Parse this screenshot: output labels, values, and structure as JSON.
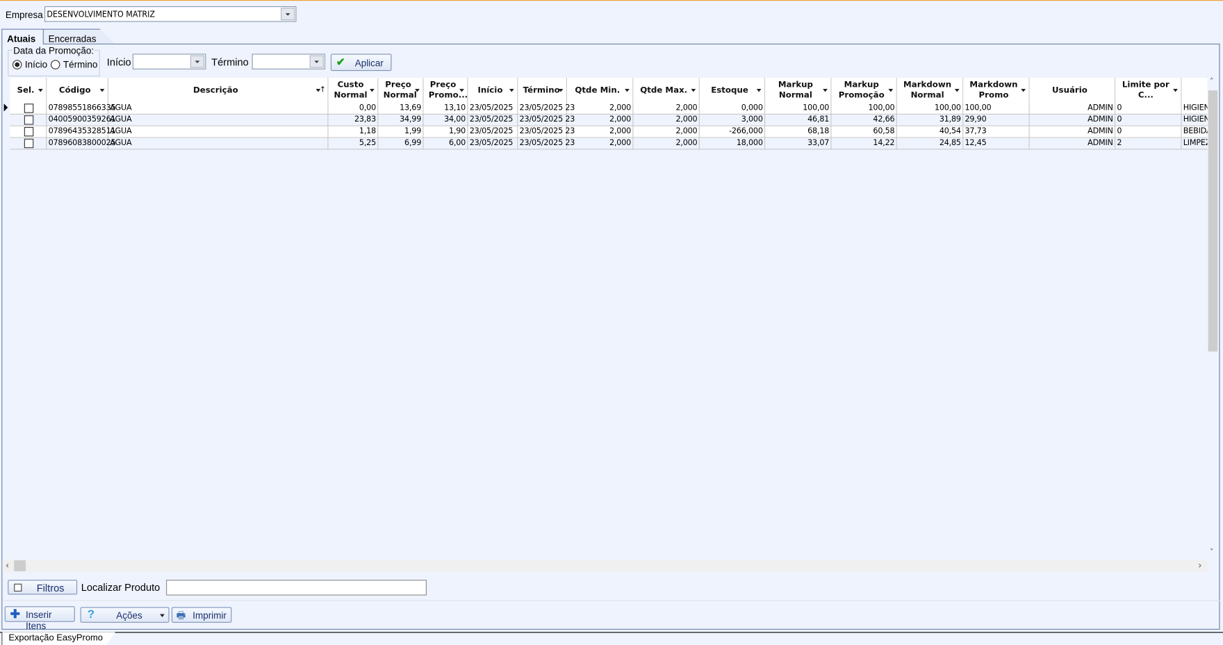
{
  "empresa": {
    "label": "Empresa",
    "value": "DESENVOLVIMENTO MATRIZ"
  },
  "tabs": [
    {
      "label": "Atuais",
      "active": true
    },
    {
      "label": "Encerradas",
      "active": false
    }
  ],
  "filter": {
    "group_label": "Data da Promoção:",
    "radio_inicio": "Início",
    "radio_termino": "Término",
    "selected": "Início",
    "inicio_label": "Início",
    "inicio_value": "",
    "termino_label": "Término",
    "termino_value": "",
    "apply_label": "Aplicar"
  },
  "grid": {
    "columns": [
      "Sel.",
      "Código",
      "Descrição",
      "Custo Normal",
      "Preço Normal",
      "Preço Promo...",
      "Início",
      "Término",
      "Qtde Min.",
      "Qtde Max.",
      "Estoque",
      "Markup Normal",
      "Markup Promoção",
      "Markdown Normal",
      "Markdown Promo",
      "Usuário",
      "Limite por C...",
      ""
    ],
    "rows": [
      {
        "sel": false,
        "cells": [
          "07898551866335",
          "AGUA",
          "0,00",
          "13,69",
          "13,10",
          "23/05/2025",
          "23/05/2025 23",
          "2,000",
          "2,000",
          "0,000",
          "100,00",
          "100,00",
          "100,00",
          "100,00",
          "ADMIN",
          "0",
          "HIGIEN"
        ]
      },
      {
        "sel": false,
        "cells": [
          "04005900359261",
          "AGUA",
          "23,83",
          "34,99",
          "34,00",
          "23/05/2025",
          "23/05/2025 23",
          "2,000",
          "2,000",
          "3,000",
          "46,81",
          "42,66",
          "31,89",
          "29,90",
          "ADMIN",
          "0",
          "HIGIEN"
        ]
      },
      {
        "sel": false,
        "cells": [
          "07896435328511",
          "AGUA",
          "1,18",
          "1,99",
          "1,90",
          "23/05/2025",
          "23/05/2025 23",
          "2,000",
          "2,000",
          "-266,000",
          "68,18",
          "60,58",
          "40,54",
          "37,73",
          "ADMIN",
          "0",
          "BEBIDA"
        ]
      },
      {
        "sel": false,
        "cells": [
          "07896083800025",
          "AGUA",
          "5,25",
          "6,99",
          "6,00",
          "23/05/2025",
          "23/05/2025 23",
          "2,000",
          "2,000",
          "18,000",
          "33,07",
          "14,22",
          "24,85",
          "12,45",
          "ADMIN",
          "2",
          "LIMPEZ"
        ]
      }
    ]
  },
  "bottom": {
    "filtros_label": "Filtros",
    "localizar_label": "Localizar Produto",
    "localizar_value": "",
    "inserir_label": "Inserir Itens",
    "acoes_label": "Ações",
    "imprimir_label": "Imprimir"
  },
  "footer_tab": "Exportação EasyPromo",
  "colors": {
    "accent": "#f0a030",
    "border": "#6b82a6",
    "background": "#eef3fd"
  }
}
